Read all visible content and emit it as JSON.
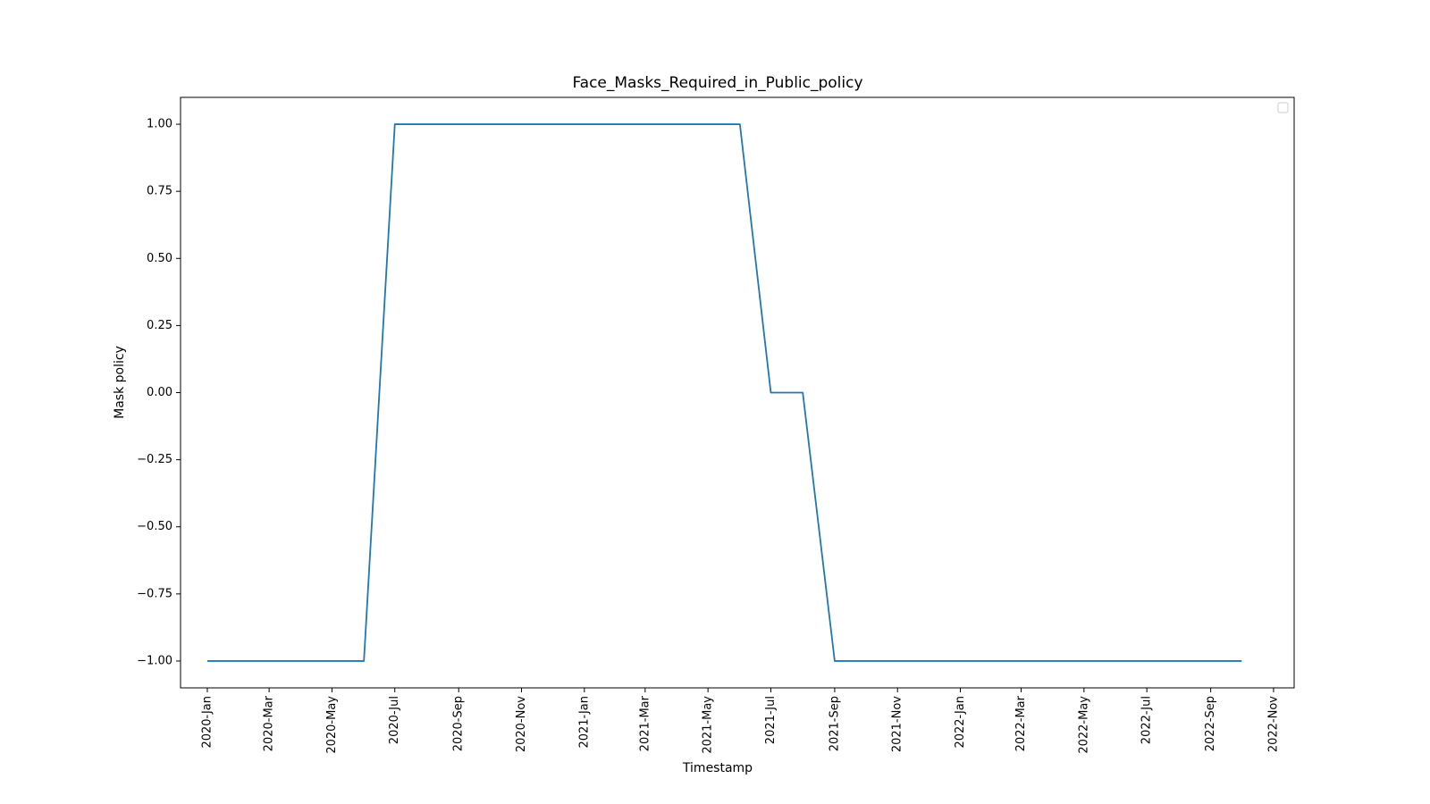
{
  "chart_data": {
    "type": "line",
    "title": "Face_Masks_Required_in_Public_policy",
    "xlabel": "Timestamp",
    "ylabel": "Mask policy",
    "x_axis_type": "date",
    "xlim": [
      "2019-12-06",
      "2022-11-21"
    ],
    "ylim": [
      -1.1,
      1.1
    ],
    "grid": false,
    "legend": {
      "placement": "top-right",
      "entries": []
    },
    "line_color": "#1f77b4",
    "x_ticks": [
      {
        "date": "2020-01-01",
        "label": "2020-Jan"
      },
      {
        "date": "2020-03-01",
        "label": "2020-Mar"
      },
      {
        "date": "2020-05-01",
        "label": "2020-May"
      },
      {
        "date": "2020-07-01",
        "label": "2020-Jul"
      },
      {
        "date": "2020-09-01",
        "label": "2020-Sep"
      },
      {
        "date": "2020-11-01",
        "label": "2020-Nov"
      },
      {
        "date": "2021-01-01",
        "label": "2021-Jan"
      },
      {
        "date": "2021-03-01",
        "label": "2021-Mar"
      },
      {
        "date": "2021-05-01",
        "label": "2021-May"
      },
      {
        "date": "2021-07-01",
        "label": "2021-Jul"
      },
      {
        "date": "2021-09-01",
        "label": "2021-Sep"
      },
      {
        "date": "2021-11-01",
        "label": "2021-Nov"
      },
      {
        "date": "2022-01-01",
        "label": "2022-Jan"
      },
      {
        "date": "2022-03-01",
        "label": "2022-Mar"
      },
      {
        "date": "2022-05-01",
        "label": "2022-May"
      },
      {
        "date": "2022-07-01",
        "label": "2022-Jul"
      },
      {
        "date": "2022-09-01",
        "label": "2022-Sep"
      },
      {
        "date": "2022-11-01",
        "label": "2022-Nov"
      }
    ],
    "y_ticks": [
      {
        "value": 1.0,
        "label": "1.00"
      },
      {
        "value": 0.75,
        "label": "0.75"
      },
      {
        "value": 0.5,
        "label": "0.50"
      },
      {
        "value": 0.25,
        "label": "0.25"
      },
      {
        "value": 0.0,
        "label": "0.00"
      },
      {
        "value": -0.25,
        "label": "−0.25"
      },
      {
        "value": -0.5,
        "label": "−0.50"
      },
      {
        "value": -0.75,
        "label": "−0.75"
      },
      {
        "value": -1.0,
        "label": "−1.00"
      }
    ],
    "series": [
      {
        "points": [
          {
            "x": "2020-01-01",
            "y": -1
          },
          {
            "x": "2020-06-01",
            "y": -1
          },
          {
            "x": "2020-07-01",
            "y": 1
          },
          {
            "x": "2021-06-01",
            "y": 1
          },
          {
            "x": "2021-07-01",
            "y": 0
          },
          {
            "x": "2021-08-01",
            "y": 0
          },
          {
            "x": "2021-09-01",
            "y": -1
          },
          {
            "x": "2022-10-01",
            "y": -1
          }
        ]
      }
    ]
  }
}
